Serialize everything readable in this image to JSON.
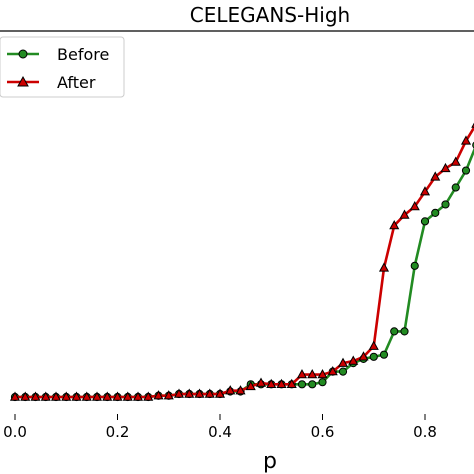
{
  "chart_data": {
    "type": "line",
    "title": "CELEGANS-High",
    "xlabel": "p",
    "ylabel": "",
    "xlim": [
      -0.02,
      0.9
    ],
    "ylim": [
      0,
      1
    ],
    "xticks": [
      0.0,
      0.2,
      0.4,
      0.6,
      0.8
    ],
    "xtick_labels": [
      "0.0",
      "0.2",
      "0.4",
      "0.6",
      "0.8"
    ],
    "legend_position": "top-left",
    "series": [
      {
        "name": "Before",
        "color": "#228b22",
        "marker": "circle",
        "x": [
          0.0,
          0.02,
          0.04,
          0.06,
          0.08,
          0.1,
          0.12,
          0.14,
          0.16,
          0.18,
          0.2,
          0.22,
          0.24,
          0.26,
          0.28,
          0.3,
          0.32,
          0.34,
          0.36,
          0.38,
          0.4,
          0.42,
          0.44,
          0.46,
          0.48,
          0.5,
          0.52,
          0.54,
          0.56,
          0.58,
          0.6,
          0.62,
          0.64,
          0.66,
          0.68,
          0.7,
          0.72,
          0.74,
          0.76,
          0.78,
          0.8,
          0.82,
          0.84,
          0.86,
          0.88,
          0.9
        ],
        "y": [
          0.105,
          0.105,
          0.105,
          0.105,
          0.105,
          0.105,
          0.105,
          0.105,
          0.105,
          0.105,
          0.105,
          0.105,
          0.105,
          0.105,
          0.108,
          0.108,
          0.112,
          0.112,
          0.112,
          0.112,
          0.112,
          0.118,
          0.118,
          0.135,
          0.135,
          0.135,
          0.135,
          0.135,
          0.135,
          0.135,
          0.14,
          0.165,
          0.165,
          0.185,
          0.195,
          0.2,
          0.205,
          0.26,
          0.26,
          0.415,
          0.52,
          0.54,
          0.56,
          0.6,
          0.64,
          0.7
        ]
      },
      {
        "name": "After",
        "color": "#cc0000",
        "marker": "triangle",
        "x": [
          0.0,
          0.02,
          0.04,
          0.06,
          0.08,
          0.1,
          0.12,
          0.14,
          0.16,
          0.18,
          0.2,
          0.22,
          0.24,
          0.26,
          0.28,
          0.3,
          0.32,
          0.34,
          0.36,
          0.38,
          0.4,
          0.42,
          0.44,
          0.46,
          0.48,
          0.5,
          0.52,
          0.54,
          0.56,
          0.58,
          0.6,
          0.62,
          0.64,
          0.66,
          0.68,
          0.7,
          0.72,
          0.74,
          0.76,
          0.78,
          0.8,
          0.82,
          0.84,
          0.86,
          0.88,
          0.9
        ],
        "y": [
          0.105,
          0.105,
          0.105,
          0.105,
          0.105,
          0.105,
          0.105,
          0.105,
          0.105,
          0.105,
          0.105,
          0.105,
          0.105,
          0.105,
          0.108,
          0.108,
          0.112,
          0.112,
          0.112,
          0.112,
          0.112,
          0.12,
          0.12,
          0.13,
          0.138,
          0.135,
          0.135,
          0.135,
          0.158,
          0.158,
          0.158,
          0.165,
          0.185,
          0.19,
          0.2,
          0.225,
          0.41,
          0.51,
          0.535,
          0.555,
          0.59,
          0.625,
          0.645,
          0.66,
          0.71,
          0.75
        ]
      }
    ]
  }
}
